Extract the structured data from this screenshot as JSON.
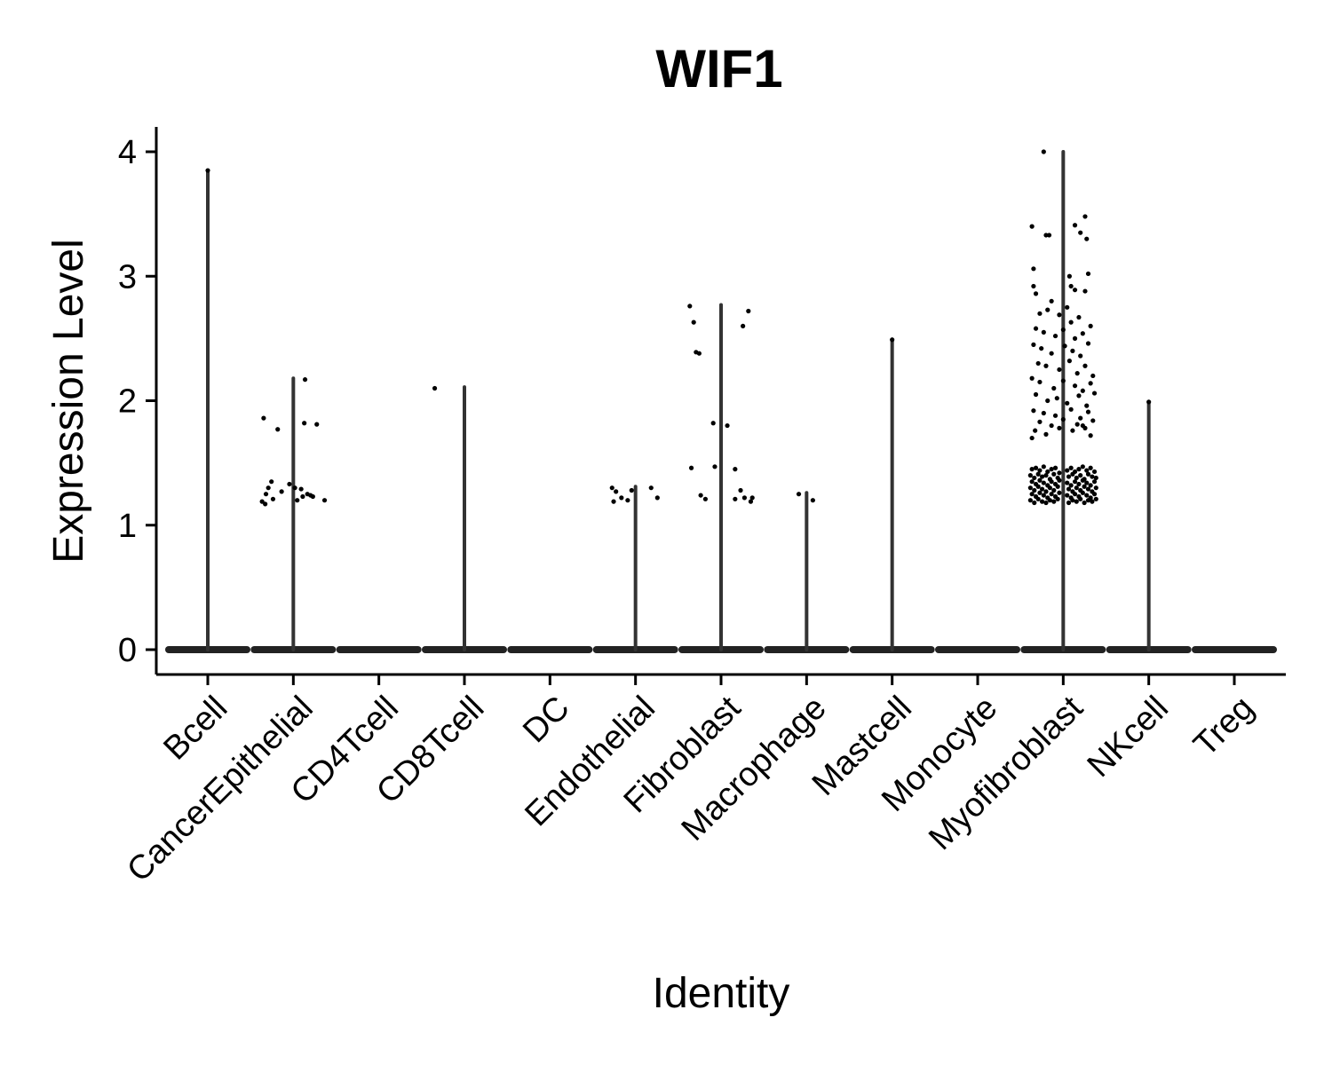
{
  "chart_data": {
    "type": "violin",
    "title": "WIF1",
    "xlabel": "Identity",
    "ylabel": "Expression Level",
    "ylim": [
      -0.2,
      4.2
    ],
    "yticks": [
      0,
      1,
      2,
      3,
      4
    ],
    "categories": [
      "Bcell",
      "CancerEpithelial",
      "CD4Tcell",
      "CD8Tcell",
      "DC",
      "Endothelial",
      "Fibroblast",
      "Macrophage",
      "Mastcell",
      "Monocyte",
      "Myofibroblast",
      "NKcell",
      "Treg"
    ],
    "max_values": [
      3.85,
      2.18,
      0,
      2.11,
      0,
      1.31,
      2.77,
      1.26,
      2.49,
      0,
      4.0,
      1.99,
      0
    ],
    "points": [
      [
        [
          0.0,
          3.85
        ]
      ],
      [
        [
          -0.38,
          1.86
        ],
        [
          -0.4,
          1.19
        ],
        [
          -0.36,
          1.17
        ],
        [
          -0.35,
          1.25
        ],
        [
          -0.32,
          1.3
        ],
        [
          -0.28,
          1.35
        ],
        [
          -0.26,
          1.21
        ],
        [
          -0.2,
          1.77
        ],
        [
          -0.15,
          1.27
        ],
        [
          -0.05,
          1.33
        ],
        [
          0.02,
          1.3
        ],
        [
          0.05,
          1.2
        ],
        [
          0.1,
          1.29
        ],
        [
          0.12,
          1.23
        ],
        [
          0.14,
          1.82
        ],
        [
          0.15,
          2.17
        ],
        [
          0.18,
          1.25
        ],
        [
          0.22,
          1.24
        ],
        [
          0.25,
          1.23
        ],
        [
          0.3,
          1.81
        ],
        [
          0.4,
          1.2
        ]
      ],
      [],
      [
        [
          -0.38,
          2.1
        ]
      ],
      [],
      [
        [
          -0.3,
          1.3
        ],
        [
          -0.28,
          1.19
        ],
        [
          -0.25,
          1.27
        ],
        [
          -0.18,
          1.22
        ],
        [
          -0.1,
          1.2
        ],
        [
          -0.05,
          1.28
        ],
        [
          0.2,
          1.3
        ],
        [
          0.28,
          1.22
        ]
      ],
      [
        [
          -0.4,
          2.76
        ],
        [
          -0.38,
          1.46
        ],
        [
          -0.35,
          2.63
        ],
        [
          -0.32,
          2.39
        ],
        [
          -0.28,
          2.38
        ],
        [
          -0.26,
          1.24
        ],
        [
          -0.2,
          1.21
        ],
        [
          -0.1,
          1.82
        ],
        [
          -0.08,
          1.47
        ],
        [
          0.08,
          1.8
        ],
        [
          0.18,
          1.45
        ],
        [
          0.18,
          1.21
        ],
        [
          0.25,
          1.28
        ],
        [
          0.28,
          2.6
        ],
        [
          0.3,
          1.22
        ],
        [
          0.35,
          2.72
        ],
        [
          0.38,
          1.19
        ],
        [
          0.4,
          1.22
        ]
      ],
      [
        [
          -0.1,
          1.25
        ],
        [
          0.08,
          1.2
        ]
      ],
      [
        [
          0.0,
          2.49
        ]
      ],
      [],
      [
        [
          -0.25,
          4.0
        ],
        [
          -0.4,
          3.4
        ],
        [
          0.15,
          3.41
        ],
        [
          0.28,
          3.48
        ],
        [
          0.22,
          3.35
        ],
        [
          0.3,
          3.3
        ],
        [
          0.32,
          3.02
        ],
        [
          -0.22,
          3.33
        ],
        [
          -0.18,
          3.33
        ],
        [
          -0.38,
          3.06
        ],
        [
          -0.38,
          2.92
        ],
        [
          0.08,
          3.0
        ],
        [
          -0.35,
          2.86
        ],
        [
          -0.15,
          2.8
        ],
        [
          0.1,
          2.92
        ],
        [
          0.15,
          2.89
        ],
        [
          0.28,
          2.88
        ],
        [
          -0.3,
          2.7
        ],
        [
          -0.2,
          2.73
        ],
        [
          0.05,
          2.75
        ],
        [
          0.2,
          2.67
        ],
        [
          -0.05,
          2.69
        ],
        [
          0.1,
          2.63
        ],
        [
          -0.35,
          2.58
        ],
        [
          -0.25,
          2.55
        ],
        [
          -0.1,
          2.52
        ],
        [
          0.0,
          2.57
        ],
        [
          0.15,
          2.5
        ],
        [
          0.25,
          2.54
        ],
        [
          0.35,
          2.6
        ],
        [
          -0.38,
          2.45
        ],
        [
          -0.28,
          2.42
        ],
        [
          -0.15,
          2.38
        ],
        [
          0.02,
          2.44
        ],
        [
          0.12,
          2.4
        ],
        [
          0.22,
          2.36
        ],
        [
          0.32,
          2.46
        ],
        [
          -0.32,
          2.3
        ],
        [
          -0.22,
          2.28
        ],
        [
          -0.05,
          2.25
        ],
        [
          0.08,
          2.32
        ],
        [
          0.18,
          2.22
        ],
        [
          0.28,
          2.28
        ],
        [
          0.38,
          2.2
        ],
        [
          -0.4,
          2.18
        ],
        [
          -0.3,
          2.15
        ],
        [
          -0.12,
          2.1
        ],
        [
          0.0,
          2.16
        ],
        [
          0.15,
          2.12
        ],
        [
          0.25,
          2.08
        ],
        [
          0.35,
          2.14
        ],
        [
          -0.35,
          2.05
        ],
        [
          -0.2,
          2.0
        ],
        [
          -0.08,
          2.02
        ],
        [
          0.05,
          1.98
        ],
        [
          0.2,
          2.04
        ],
        [
          0.3,
          1.96
        ],
        [
          0.4,
          2.06
        ],
        [
          -0.38,
          1.92
        ],
        [
          -0.25,
          1.9
        ],
        [
          -0.1,
          1.88
        ],
        [
          0.1,
          1.93
        ],
        [
          0.22,
          1.86
        ],
        [
          0.32,
          1.91
        ],
        [
          -0.3,
          1.83
        ],
        [
          -0.15,
          1.8
        ],
        [
          0.0,
          1.85
        ],
        [
          0.18,
          1.81
        ],
        [
          0.28,
          1.78
        ],
        [
          0.38,
          1.84
        ],
        [
          -0.36,
          1.76
        ],
        [
          -0.22,
          1.73
        ],
        [
          -0.05,
          1.78
        ],
        [
          0.12,
          1.76
        ],
        [
          0.25,
          1.8
        ],
        [
          -0.4,
          1.7
        ],
        [
          0.35,
          1.72
        ],
        [
          -0.4,
          1.45
        ],
        [
          -0.35,
          1.46
        ],
        [
          -0.3,
          1.44
        ],
        [
          -0.25,
          1.47
        ],
        [
          -0.2,
          1.43
        ],
        [
          -0.15,
          1.45
        ],
        [
          -0.1,
          1.46
        ],
        [
          -0.05,
          1.42
        ],
        [
          0.05,
          1.44
        ],
        [
          0.1,
          1.46
        ],
        [
          0.15,
          1.43
        ],
        [
          0.2,
          1.45
        ],
        [
          0.25,
          1.47
        ],
        [
          0.3,
          1.44
        ],
        [
          0.35,
          1.46
        ],
        [
          0.4,
          1.43
        ],
        [
          -0.42,
          1.4
        ],
        [
          -0.37,
          1.38
        ],
        [
          -0.32,
          1.41
        ],
        [
          -0.27,
          1.39
        ],
        [
          -0.22,
          1.4
        ],
        [
          -0.17,
          1.37
        ],
        [
          -0.12,
          1.41
        ],
        [
          -0.07,
          1.38
        ],
        [
          0.07,
          1.39
        ],
        [
          0.12,
          1.41
        ],
        [
          0.17,
          1.38
        ],
        [
          0.22,
          1.4
        ],
        [
          0.27,
          1.37
        ],
        [
          0.32,
          1.41
        ],
        [
          0.37,
          1.39
        ],
        [
          0.42,
          1.38
        ],
        [
          -0.4,
          1.35
        ],
        [
          -0.35,
          1.33
        ],
        [
          -0.3,
          1.36
        ],
        [
          -0.25,
          1.34
        ],
        [
          -0.2,
          1.32
        ],
        [
          -0.15,
          1.35
        ],
        [
          -0.1,
          1.33
        ],
        [
          -0.05,
          1.36
        ],
        [
          0.05,
          1.34
        ],
        [
          0.1,
          1.32
        ],
        [
          0.15,
          1.35
        ],
        [
          0.2,
          1.33
        ],
        [
          0.25,
          1.36
        ],
        [
          0.3,
          1.34
        ],
        [
          0.35,
          1.32
        ],
        [
          0.4,
          1.35
        ],
        [
          -0.42,
          1.3
        ],
        [
          -0.37,
          1.28
        ],
        [
          -0.32,
          1.31
        ],
        [
          -0.27,
          1.29
        ],
        [
          -0.22,
          1.27
        ],
        [
          -0.17,
          1.3
        ],
        [
          -0.12,
          1.28
        ],
        [
          -0.07,
          1.31
        ],
        [
          0.07,
          1.29
        ],
        [
          0.12,
          1.27
        ],
        [
          0.17,
          1.3
        ],
        [
          0.22,
          1.28
        ],
        [
          0.27,
          1.31
        ],
        [
          0.32,
          1.29
        ],
        [
          0.37,
          1.27
        ],
        [
          0.42,
          1.3
        ],
        [
          -0.4,
          1.25
        ],
        [
          -0.35,
          1.23
        ],
        [
          -0.3,
          1.26
        ],
        [
          -0.25,
          1.24
        ],
        [
          -0.2,
          1.22
        ],
        [
          -0.15,
          1.25
        ],
        [
          -0.1,
          1.23
        ],
        [
          -0.05,
          1.26
        ],
        [
          0.05,
          1.24
        ],
        [
          0.1,
          1.22
        ],
        [
          0.15,
          1.25
        ],
        [
          0.2,
          1.23
        ],
        [
          0.25,
          1.26
        ],
        [
          0.3,
          1.24
        ],
        [
          0.35,
          1.22
        ],
        [
          0.4,
          1.25
        ],
        [
          -0.42,
          1.2
        ],
        [
          -0.37,
          1.18
        ],
        [
          -0.32,
          1.21
        ],
        [
          -0.27,
          1.19
        ],
        [
          -0.22,
          1.18
        ],
        [
          -0.17,
          1.2
        ],
        [
          -0.12,
          1.19
        ],
        [
          -0.07,
          1.21
        ],
        [
          0.07,
          1.18
        ],
        [
          0.12,
          1.2
        ],
        [
          0.17,
          1.19
        ],
        [
          0.22,
          1.21
        ],
        [
          0.27,
          1.18
        ],
        [
          0.32,
          1.2
        ],
        [
          0.37,
          1.19
        ],
        [
          0.42,
          1.21
        ]
      ],
      [
        [
          0.0,
          1.99
        ]
      ],
      []
    ]
  }
}
